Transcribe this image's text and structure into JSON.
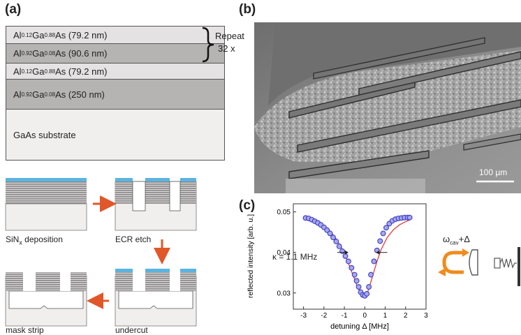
{
  "panel_a": {
    "label": "(a)",
    "layers": [
      {
        "el1": "Al",
        "sub1": "0.12",
        "el2": "Ga",
        "sub2": "0.88",
        "el3": "As (79.2 nm)"
      },
      {
        "el1": "Al",
        "sub1": "0.92",
        "el2": "Ga",
        "sub2": "0.08",
        "el3": "As (90.6 nm)"
      },
      {
        "el1": "Al",
        "sub1": "0.12",
        "el2": "Ga",
        "sub2": "0.88",
        "el3": "As (79.2 nm)"
      },
      {
        "el1": "Al",
        "sub1": "0.92",
        "el2": "Ga",
        "sub2": "0.08",
        "el3": "As (250 nm)"
      }
    ],
    "substrate": "GaAs substrate",
    "repeat_line1": "Repeat",
    "repeat_line2": "32 x",
    "steps": {
      "sin_main": "SiN",
      "sin_sub": "x",
      "sin_rest": " deposition",
      "ecr": "ECR etch",
      "undercut": "undercut",
      "mask": "mask strip"
    },
    "colors": {
      "light_layer": "#e4e2e2",
      "dark_layer": "#b6b3b3",
      "substrate": "#f1eeee",
      "silicon_nitride": "#5ab4e0",
      "arrow": "#e0572a"
    }
  },
  "panel_b": {
    "label": "(b)",
    "scale_bar": "100 µm"
  },
  "panel_c": {
    "label": "(c)",
    "kappa": "κ = 1.1 MHz",
    "omega_main": "ω",
    "omega_sub": "cav",
    "omega_rest": "+Δ"
  },
  "chart_data": {
    "type": "scatter",
    "xlabel": "detuning Δ [MHz]",
    "ylabel": "reflected intensity [arb. u.]",
    "xlim": [
      -3.5,
      3.0
    ],
    "ylim": [
      0.026,
      0.052
    ],
    "x_ticks": [
      -3,
      -2,
      -1,
      0,
      1,
      2,
      3
    ],
    "y_ticks": [
      0.03,
      0.04,
      0.05
    ],
    "y_tick_labels": [
      "0.03",
      "0.04",
      "0.05"
    ],
    "series": [
      {
        "kind": "points",
        "x": [
          -2.9,
          -2.75,
          -2.6,
          -2.45,
          -2.3,
          -2.15,
          -2.0,
          -1.85,
          -1.7,
          -1.55,
          -1.4,
          -1.25,
          -1.1,
          -0.95,
          -0.8,
          -0.65,
          -0.5,
          -0.4,
          -0.3,
          -0.2,
          -0.1,
          0.0,
          0.1,
          0.2,
          0.3,
          0.45,
          0.6,
          0.75,
          0.9,
          1.05,
          1.2,
          1.35,
          1.5,
          1.65,
          1.8,
          1.95,
          2.1,
          2.2
        ],
        "y": [
          0.0485,
          0.0484,
          0.0481,
          0.0477,
          0.0473,
          0.0468,
          0.0462,
          0.0455,
          0.0447,
          0.0437,
          0.0427,
          0.0415,
          0.0403,
          0.0391,
          0.0378,
          0.0362,
          0.0345,
          0.033,
          0.0315,
          0.0302,
          0.0295,
          0.0293,
          0.0298,
          0.0315,
          0.0345,
          0.0378,
          0.0405,
          0.0428,
          0.0447,
          0.0461,
          0.0471,
          0.0478,
          0.0482,
          0.0484,
          0.0485,
          0.0486,
          0.0486,
          0.0486
        ]
      },
      {
        "kind": "fit",
        "x": [
          -2.9,
          -2.6,
          -2.3,
          -2.0,
          -1.7,
          -1.4,
          -1.1,
          -0.8,
          -0.6,
          -0.4,
          -0.2,
          -0.1,
          0.0,
          0.1,
          0.2,
          0.4,
          0.6,
          0.8,
          1.1,
          1.4,
          1.7,
          2.0,
          2.2
        ],
        "y": [
          0.0486,
          0.0482,
          0.0476,
          0.0466,
          0.0453,
          0.0433,
          0.0408,
          0.0373,
          0.0347,
          0.032,
          0.03,
          0.0295,
          0.0294,
          0.0298,
          0.031,
          0.0345,
          0.0378,
          0.0407,
          0.0437,
          0.0456,
          0.0468,
          0.0476,
          0.048
        ]
      }
    ],
    "colors": {
      "points": "#3b3cc8",
      "point_fill": "#a7a8e8",
      "fit": "#e23a3a"
    }
  }
}
